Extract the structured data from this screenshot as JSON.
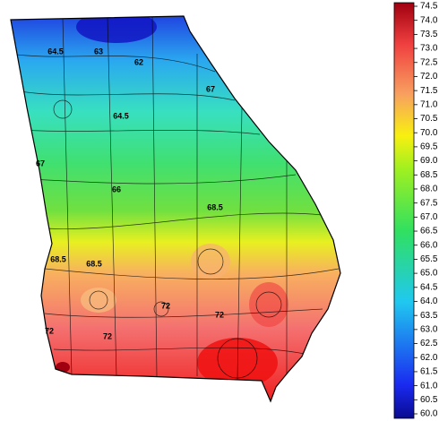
{
  "colorbar": {
    "lim": [
      60.0,
      74.5
    ],
    "ticks": [
      {
        "value": 60.0,
        "label": "60.0"
      },
      60.5,
      {
        "value": 61.0,
        "label": "61.0"
      },
      61.5,
      {
        "value": 62.0,
        "label": "62.0"
      },
      62.5,
      {
        "value": 63.0,
        "label": "63.0"
      },
      63.5,
      {
        "value": 64.0,
        "label": "64.0"
      },
      64.5,
      {
        "value": 65.0,
        "label": "65.0"
      },
      65.5,
      {
        "value": 66.0,
        "label": "66.0"
      },
      66.5,
      {
        "value": 67.0,
        "label": "67.0"
      },
      67.5,
      {
        "value": 68.0,
        "label": "68.0"
      },
      68.5,
      {
        "value": 69.0,
        "label": "69.0"
      },
      69.5,
      {
        "value": 70.0,
        "label": "70.0"
      },
      70.5,
      {
        "value": 71.0,
        "label": "71.0"
      },
      71.5,
      {
        "value": 72.0,
        "label": "72.0"
      },
      72.5,
      {
        "value": 73.0,
        "label": "73.0"
      },
      73.5,
      {
        "value": 74.0,
        "label": "74.0"
      },
      74.5
    ]
  },
  "contour_labels": [
    "64.5",
    "63",
    "62",
    "67",
    "64.5",
    "67",
    "66",
    "68.5",
    "68.5",
    "68.5",
    "72",
    "72",
    "72",
    "72"
  ]
}
